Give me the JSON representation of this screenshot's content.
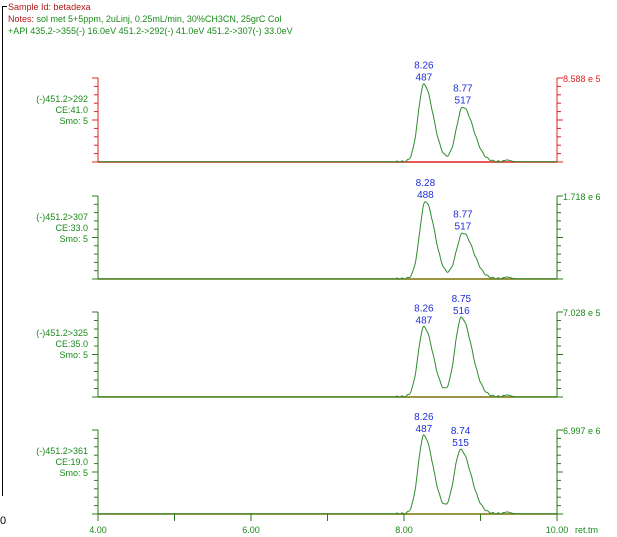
{
  "header": {
    "sample_label": "Sample Id:",
    "sample_id": "betadexa",
    "notes_label": "Notes:",
    "notes": "sol met 5+5ppm, 2uLinj, 0.25mL/min, 30%CH3CN, 25grC Col",
    "api_line": "+API  435.2->355(-) 16.0eV 451.2->292(-) 41.0eV 451.2->307(-) 33.0eV"
  },
  "colors": {
    "trace": "#2e8b2e",
    "label_green": "#1a8a1a",
    "peak_label": "#1f2fd8",
    "axis_red": "#e02020",
    "axis_green": "#2a7a1a",
    "baseline_dark": "#7a7000",
    "header_red": "#b01818"
  },
  "x_axis": {
    "ticks": [
      "4.00",
      "6.00",
      "8.00",
      "10.00"
    ],
    "unit": "ret.tm",
    "range": [
      4.0,
      10.0
    ]
  },
  "left_edge_fragment": "0",
  "chart_data": [
    {
      "type": "line",
      "channel": "(-)451.2>292",
      "ce": "CE:41.0",
      "smo": "Smo: 5",
      "scale": "8.588 e 5",
      "highlight": "red",
      "xlim": [
        4.0,
        10.0
      ],
      "peaks": [
        {
          "rt": "8.26",
          "scan": "487",
          "x": 8.26,
          "height": 0.92,
          "width": 0.075
        },
        {
          "rt": "8.77",
          "scan": "517",
          "x": 8.77,
          "height": 0.65,
          "width": 0.085
        }
      ]
    },
    {
      "type": "line",
      "channel": "(-)451.2>307",
      "ce": "CE:33.0",
      "smo": "Smo: 5",
      "scale": "1.718 e 6",
      "highlight": "green",
      "xlim": [
        4.0,
        10.0
      ],
      "peaks": [
        {
          "rt": "8.28",
          "scan": "488",
          "x": 8.28,
          "height": 0.93,
          "width": 0.075
        },
        {
          "rt": "8.77",
          "scan": "517",
          "x": 8.77,
          "height": 0.55,
          "width": 0.085
        }
      ]
    },
    {
      "type": "line",
      "channel": "(-)451.2>325",
      "ce": "CE:35.0",
      "smo": "Smo: 5",
      "scale": "7.028 e 5",
      "highlight": "green",
      "xlim": [
        4.0,
        10.0
      ],
      "peaks": [
        {
          "rt": "8.26",
          "scan": "487",
          "x": 8.26,
          "height": 0.82,
          "width": 0.075
        },
        {
          "rt": "8.75",
          "scan": "516",
          "x": 8.75,
          "height": 0.93,
          "width": 0.085
        }
      ]
    },
    {
      "type": "line",
      "channel": "(-)451.2>361",
      "ce": "CE:19.0",
      "smo": "Smo: 5",
      "scale": "6.997 e 6",
      "highlight": "green",
      "xlim": [
        4.0,
        10.0
      ],
      "peaks": [
        {
          "rt": "8.26",
          "scan": "487",
          "x": 8.26,
          "height": 0.93,
          "width": 0.075
        },
        {
          "rt": "8.74",
          "scan": "515",
          "x": 8.74,
          "height": 0.76,
          "width": 0.085
        }
      ]
    }
  ]
}
